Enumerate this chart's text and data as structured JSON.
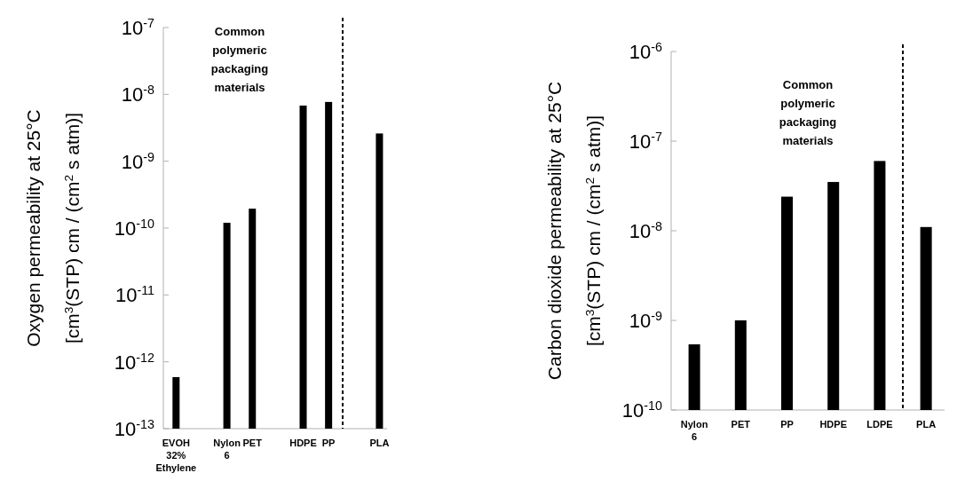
{
  "chart_data": [
    {
      "type": "bar",
      "ylabel": "Oxygen permeability at 25°C\n[cm$^{3}$(STP) cm / (cm$^{2}$ s atm)]",
      "categories": [
        "EVOH\n32%\nEthylene",
        null,
        "Nylon\n6",
        "PET",
        null,
        "HDPE",
        "PP",
        null,
        "PLA"
      ],
      "values": [
        5.9e-13,
        null,
        1.2e-10,
        1.95e-10,
        null,
        6.8e-09,
        7.7e-09,
        null,
        2.6e-09
      ],
      "color": "#000000",
      "log": true,
      "ylim": [
        1e-13,
        1e-07
      ],
      "yticks": [
        {
          "value": 1e-13,
          "label": "10$^{-13}$"
        },
        {
          "value": 1e-12,
          "label": "10$^{-12}$"
        },
        {
          "value": 1e-11,
          "label": "10$^{-11}$"
        },
        {
          "value": 1e-10,
          "label": "10$^{-10}$"
        },
        {
          "value": 1e-09,
          "label": "10$^{-9}$"
        },
        {
          "value": 1e-08,
          "label": "10$^{-8}$"
        },
        {
          "value": 1e-07,
          "label": "10$^{-7}$"
        }
      ],
      "annotations": [
        "Common\npolymeric\npackaging\nmaterials"
      ]
    },
    {
      "type": "bar",
      "ylabel": "Carbon dioxide permeability at 25°C\n[cm$^{3}$(STP) cm / (cm$^{2}$ s atm)]",
      "categories": [
        "Nylon\n6",
        "PET",
        "PP",
        "HDPE",
        "LDPE",
        "PLA"
      ],
      "values": [
        5.4e-10,
        1e-09,
        2.4e-08,
        3.5e-08,
        6e-08,
        1.1e-08
      ],
      "color": "#000000",
      "log": true,
      "ylim": [
        1e-10,
        1e-06
      ],
      "yticks": [
        {
          "value": 1e-10,
          "label": "10$^{-10}$"
        },
        {
          "value": 1e-09,
          "label": "10$^{-9}$"
        },
        {
          "value": 1e-08,
          "label": "10$^{-8}$"
        },
        {
          "value": 1e-07,
          "label": "10$^{-7}$"
        },
        {
          "value": 1e-06,
          "label": "10$^{-6}$"
        }
      ],
      "annotations": [
        "Common\npolymeric\npackaging\nmaterials"
      ]
    }
  ]
}
